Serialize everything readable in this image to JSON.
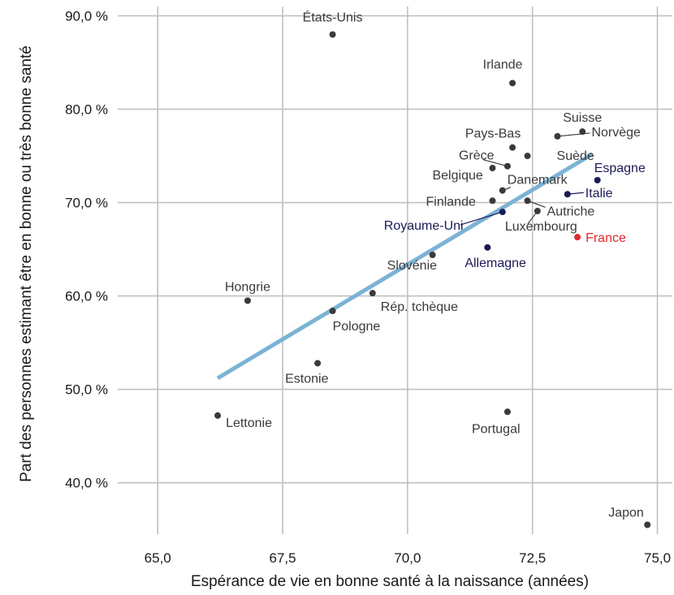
{
  "chart_data": {
    "type": "scatter",
    "xlabel": "Espérance de vie en bonne santé à la naissance (années)",
    "ylabel": "Part des personnes estimant être en bonne ou très bonne santé",
    "xlim": [
      64.2,
      75.3
    ],
    "ylim": [
      34.5,
      91
    ],
    "xticks": [
      65,
      67.5,
      70,
      72.5,
      75
    ],
    "xtick_labels": [
      "65,0",
      "67,5",
      "70,0",
      "72,5",
      "75,0"
    ],
    "yticks": [
      40,
      50,
      60,
      70,
      80,
      90
    ],
    "ytick_labels": [
      "40,0 %",
      "50,0 %",
      "60,0 %",
      "70,0 %",
      "80,0 %",
      "90,0 %"
    ],
    "grid": true,
    "colors": {
      "default": "#3a3a3a",
      "highlight": "#1b1a57",
      "france": "#e3262b",
      "trend": "#7bb3d4",
      "grid": "#bdbdbd"
    },
    "trend_line": {
      "x": [
        66.2,
        73.7
      ],
      "y": [
        51.2,
        75.2
      ]
    },
    "points": [
      {
        "label": "États-Unis",
        "x": 68.5,
        "y": 88.0,
        "group": "default"
      },
      {
        "label": "Irlande",
        "x": 72.1,
        "y": 82.8,
        "group": "default"
      },
      {
        "label": "Suisse",
        "x": 73.5,
        "y": 77.6,
        "group": "default"
      },
      {
        "label": "Norvège",
        "x": 73.0,
        "y": 77.1,
        "group": "default"
      },
      {
        "label": "Pays-Bas",
        "x": 72.1,
        "y": 75.9,
        "group": "default"
      },
      {
        "label": "Suède",
        "x": 72.4,
        "y": 75.0,
        "group": "default"
      },
      {
        "label": "Grèce",
        "x": 72.0,
        "y": 73.9,
        "group": "default"
      },
      {
        "label": "Belgique",
        "x": 71.7,
        "y": 73.7,
        "group": "default"
      },
      {
        "label": "Espagne",
        "x": 73.8,
        "y": 72.4,
        "group": "highlight"
      },
      {
        "label": "Danemark",
        "x": 71.9,
        "y": 71.3,
        "group": "default"
      },
      {
        "label": "Italie",
        "x": 73.2,
        "y": 70.9,
        "group": "highlight"
      },
      {
        "label": "Finlande",
        "x": 71.7,
        "y": 70.2,
        "group": "default"
      },
      {
        "label": "Autriche",
        "x": 72.4,
        "y": 70.2,
        "group": "default"
      },
      {
        "label": "Luxembourg",
        "x": 72.6,
        "y": 69.1,
        "group": "default"
      },
      {
        "label": "Royaume-Uni",
        "x": 71.9,
        "y": 69.0,
        "group": "highlight"
      },
      {
        "label": "France",
        "x": 73.4,
        "y": 66.3,
        "group": "france"
      },
      {
        "label": "Allemagne",
        "x": 71.6,
        "y": 65.2,
        "group": "highlight"
      },
      {
        "label": "Slovénie",
        "x": 70.5,
        "y": 64.4,
        "group": "default"
      },
      {
        "label": "Rép. tchèque",
        "x": 69.3,
        "y": 60.3,
        "group": "default"
      },
      {
        "label": "Hongrie",
        "x": 66.8,
        "y": 59.5,
        "group": "default"
      },
      {
        "label": "Pologne",
        "x": 68.5,
        "y": 58.4,
        "group": "default"
      },
      {
        "label": "Estonie",
        "x": 68.2,
        "y": 52.8,
        "group": "default"
      },
      {
        "label": "Lettonie",
        "x": 66.2,
        "y": 47.2,
        "group": "default"
      },
      {
        "label": "Portugal",
        "x": 72.0,
        "y": 47.6,
        "group": "default"
      },
      {
        "label": "Japon",
        "x": 74.8,
        "y": 35.5,
        "group": "default"
      }
    ]
  }
}
